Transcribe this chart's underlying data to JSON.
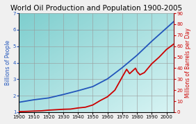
{
  "title": "World Oil Production and Population 1900-2005",
  "ylabel_left": "Billions of People",
  "ylabel_right": "Millions of Barrels per Day",
  "xlim": [
    1900,
    2005
  ],
  "ylim_left": [
    1,
    7
  ],
  "ylim_right": [
    0,
    90
  ],
  "yticks_left": [
    1,
    2,
    3,
    4,
    5,
    6,
    7
  ],
  "yticks_right": [
    0,
    10,
    20,
    30,
    40,
    50,
    60,
    70,
    80,
    90
  ],
  "xticks": [
    1900,
    1910,
    1920,
    1930,
    1940,
    1950,
    1960,
    1970,
    1980,
    1990,
    2000
  ],
  "background_color_topleft": "#7ecece",
  "background_color_bottomright": "#d8f4f4",
  "fig_background": "#f0f0f0",
  "grid_color": "#999999",
  "population_color": "#2255bb",
  "oil_color": "#cc0000",
  "population_data": {
    "years": [
      1900,
      1910,
      1920,
      1930,
      1940,
      1950,
      1960,
      1970,
      1980,
      1990,
      2000,
      2005
    ],
    "values": [
      1.6,
      1.75,
      1.86,
      2.07,
      2.3,
      2.55,
      3.02,
      3.7,
      4.45,
      5.3,
      6.1,
      6.5
    ]
  },
  "oil_data": {
    "years": [
      1900,
      1905,
      1910,
      1915,
      1920,
      1925,
      1930,
      1935,
      1940,
      1945,
      1950,
      1955,
      1960,
      1965,
      1970,
      1973,
      1974,
      1975,
      1979,
      1980,
      1982,
      1985,
      1990,
      1995,
      2000,
      2005
    ],
    "values": [
      0.5,
      0.7,
      1.0,
      1.2,
      1.8,
      2.2,
      2.6,
      2.8,
      3.8,
      4.5,
      6.5,
      10.5,
      14.0,
      20.0,
      32.0,
      39.0,
      37.0,
      35.0,
      40.0,
      37.0,
      34.0,
      36.0,
      44.0,
      50.0,
      57.0,
      62.0
    ]
  },
  "title_fontsize": 7.5,
  "axis_label_fontsize": 5.5,
  "tick_fontsize": 5
}
